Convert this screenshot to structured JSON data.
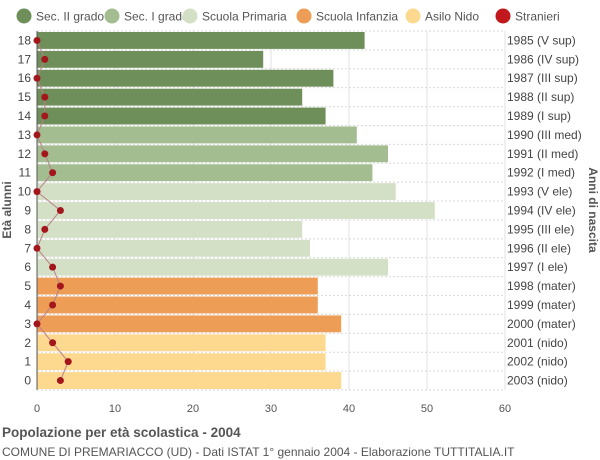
{
  "chart_data": {
    "type": "bar",
    "orientation": "horizontal",
    "ylabel": "Età alunni",
    "ylabel_right": "Anni di nascita",
    "xlim": [
      0,
      60
    ],
    "x_ticks": [
      "0",
      "10",
      "20",
      "30",
      "40",
      "50",
      "60"
    ],
    "grid": true,
    "legend_position": "top",
    "legend": [
      {
        "name": "Sec. II grado",
        "color": "#6e8f5a"
      },
      {
        "name": "Sec. I grado",
        "color": "#a3bc90"
      },
      {
        "name": "Scuola Primaria",
        "color": "#d4e0c6"
      },
      {
        "name": "Scuola Infanzia",
        "color": "#ee9d56"
      },
      {
        "name": "Asilo Nido",
        "color": "#fdd98f"
      },
      {
        "name": "Stranieri",
        "color": "#c0181c"
      }
    ],
    "rows": [
      {
        "age": "18",
        "birth": "1985 (V sup)",
        "value": 42,
        "stranieri": 0,
        "group": 0
      },
      {
        "age": "17",
        "birth": "1986 (IV sup)",
        "value": 29,
        "stranieri": 1,
        "group": 0
      },
      {
        "age": "16",
        "birth": "1987 (III sup)",
        "value": 38,
        "stranieri": 0,
        "group": 0
      },
      {
        "age": "15",
        "birth": "1988 (II sup)",
        "value": 34,
        "stranieri": 1,
        "group": 0
      },
      {
        "age": "14",
        "birth": "1989 (I sup)",
        "value": 37,
        "stranieri": 1,
        "group": 0
      },
      {
        "age": "13",
        "birth": "1990 (III med)",
        "value": 41,
        "stranieri": 0,
        "group": 1
      },
      {
        "age": "12",
        "birth": "1991 (II med)",
        "value": 45,
        "stranieri": 1,
        "group": 1
      },
      {
        "age": "11",
        "birth": "1992 (I med)",
        "value": 43,
        "stranieri": 2,
        "group": 1
      },
      {
        "age": "10",
        "birth": "1993 (V ele)",
        "value": 46,
        "stranieri": 0,
        "group": 2
      },
      {
        "age": "9",
        "birth": "1994 (IV ele)",
        "value": 51,
        "stranieri": 3,
        "group": 2
      },
      {
        "age": "8",
        "birth": "1995 (III ele)",
        "value": 34,
        "stranieri": 1,
        "group": 2
      },
      {
        "age": "7",
        "birth": "1996 (II ele)",
        "value": 35,
        "stranieri": 0,
        "group": 2
      },
      {
        "age": "6",
        "birth": "1997 (I ele)",
        "value": 45,
        "stranieri": 2,
        "group": 2
      },
      {
        "age": "5",
        "birth": "1998 (mater)",
        "value": 36,
        "stranieri": 3,
        "group": 3
      },
      {
        "age": "4",
        "birth": "1999 (mater)",
        "value": 36,
        "stranieri": 2,
        "group": 3
      },
      {
        "age": "3",
        "birth": "2000 (mater)",
        "value": 39,
        "stranieri": 0,
        "group": 3
      },
      {
        "age": "2",
        "birth": "2001 (nido)",
        "value": 37,
        "stranieri": 2,
        "group": 4
      },
      {
        "age": "1",
        "birth": "2002 (nido)",
        "value": 37,
        "stranieri": 4,
        "group": 4
      },
      {
        "age": "0",
        "birth": "2003 (nido)",
        "value": 39,
        "stranieri": 3,
        "group": 4
      }
    ],
    "title": "Popolazione per età scolastica - 2004",
    "subtitle": "COMUNE DI PREMARIACCO (UD) - Dati ISTAT 1° gennaio 2004 - Elaborazione TUTTITALIA.IT"
  }
}
